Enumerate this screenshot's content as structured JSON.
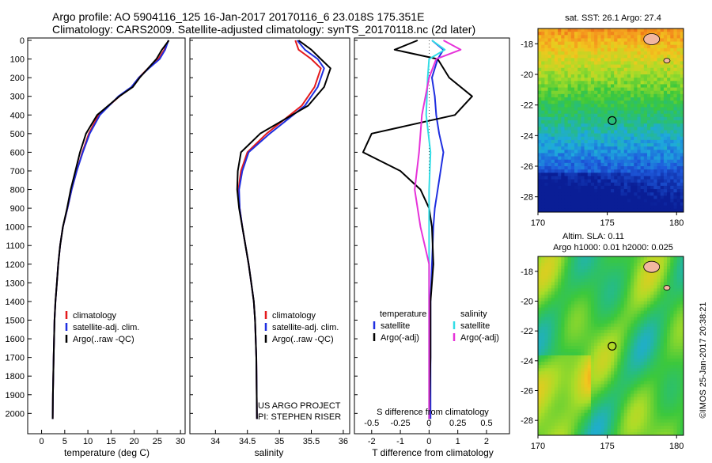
{
  "header": {
    "line1": "Argo profile: AO 5904116_125 16-Jan-2017 20170116_6 23.018S 175.351E",
    "line2": "Climatology: CARS2009. Satellite-adjusted climatology: synTS_20170118.nc (2d later)"
  },
  "credits": {
    "project": "US ARGO PROJECT",
    "pi": "PI: STEPHEN RISER",
    "imos": "©IMOS 25-Jan-2017 20:38:21"
  },
  "colors": {
    "climatology": "#e41a1c",
    "satellite": "#1f2fe0",
    "argo": "#000000",
    "sal_sat": "#33dde6",
    "sal_argo": "#e633d9"
  },
  "chart_data": [
    {
      "id": "temperature",
      "type": "line",
      "xlabel": "temperature (deg C)",
      "xlim": [
        -3,
        31
      ],
      "xticks": [
        0,
        5,
        10,
        15,
        20,
        25,
        30
      ],
      "ylim": [
        2075,
        0
      ],
      "yticks": [
        0,
        100,
        200,
        300,
        400,
        500,
        600,
        700,
        800,
        900,
        1000,
        1100,
        1200,
        1300,
        1400,
        1500,
        1600,
        1700,
        1800,
        1900,
        2000
      ],
      "legend": [
        "climatology",
        "satellite-adj. clim.",
        "Argo(..raw -QC)"
      ],
      "legend_placement": "lower-right",
      "series": [
        {
          "name": "climatology",
          "color_key": "climatology",
          "x": [
            27.4,
            26.5,
            25.2,
            23.0,
            21.0,
            19.5,
            16.8,
            12.3,
            10.2,
            8.8,
            7.6,
            6.5,
            5.6,
            4.6,
            4.0,
            3.6,
            3.3,
            3.0,
            2.8,
            2.6,
            2.45,
            2.4
          ],
          "y": [
            0,
            50,
            100,
            150,
            200,
            250,
            300,
            400,
            500,
            600,
            700,
            800,
            900,
            1000,
            1100,
            1200,
            1300,
            1400,
            1500,
            1700,
            1900,
            2030
          ]
        },
        {
          "name": "satellite-adj. clim.",
          "color_key": "satellite",
          "x": [
            27.4,
            26.7,
            25.5,
            23.2,
            21.0,
            19.4,
            16.6,
            12.6,
            10.4,
            8.9,
            7.6,
            6.5,
            5.6,
            4.6,
            4.0,
            3.6,
            3.3,
            3.0,
            2.8,
            2.6,
            2.45,
            2.4
          ],
          "y": [
            0,
            50,
            100,
            150,
            200,
            250,
            300,
            400,
            500,
            600,
            700,
            800,
            900,
            1000,
            1100,
            1200,
            1300,
            1400,
            1500,
            1700,
            1900,
            2030
          ]
        },
        {
          "name": "Argo(..raw -QC)",
          "color_key": "argo",
          "x": [
            27.5,
            26.0,
            24.8,
            23.0,
            21.2,
            19.7,
            16.8,
            12.0,
            9.6,
            8.3,
            7.3,
            6.3,
            5.5,
            4.6,
            4.0,
            3.6,
            3.3,
            3.0,
            2.8,
            2.6,
            2.45,
            2.4
          ],
          "y": [
            0,
            50,
            100,
            150,
            200,
            250,
            300,
            400,
            500,
            600,
            700,
            800,
            900,
            1000,
            1100,
            1200,
            1300,
            1400,
            1500,
            1700,
            1900,
            2030
          ]
        }
      ]
    },
    {
      "id": "salinity",
      "type": "line",
      "xlabel": "salinity",
      "xlim": [
        33.6,
        36.1
      ],
      "xticks": [
        34,
        34.5,
        35,
        35.5,
        36
      ],
      "ylim": [
        2075,
        0
      ],
      "legend": [
        "climatology",
        "satellite-adj. clim.",
        "Argo(..raw -QC)"
      ],
      "legend_placement": "lower-right",
      "series": [
        {
          "name": "climatology",
          "color_key": "climatology",
          "x": [
            35.25,
            35.3,
            35.5,
            35.65,
            35.55,
            35.35,
            34.8,
            34.5,
            34.4,
            34.36,
            34.38,
            34.42,
            34.47,
            34.52,
            34.56,
            34.6,
            34.62,
            34.64,
            34.65
          ],
          "y": [
            0,
            50,
            100,
            150,
            250,
            350,
            500,
            600,
            700,
            800,
            900,
            1000,
            1100,
            1200,
            1300,
            1400,
            1500,
            1700,
            2030
          ]
        },
        {
          "name": "satellite-adj. clim.",
          "color_key": "satellite",
          "x": [
            35.28,
            35.4,
            35.6,
            35.7,
            35.6,
            35.4,
            34.85,
            34.52,
            34.42,
            34.37,
            34.38,
            34.42,
            34.47,
            34.52,
            34.56,
            34.6,
            34.62,
            34.64,
            34.65
          ],
          "y": [
            0,
            50,
            100,
            150,
            250,
            350,
            500,
            600,
            700,
            800,
            900,
            1000,
            1100,
            1200,
            1300,
            1400,
            1500,
            1700,
            2030
          ]
        },
        {
          "name": "Argo(..raw -QC)",
          "color_key": "argo",
          "x": [
            35.3,
            35.5,
            35.65,
            35.8,
            35.7,
            35.45,
            34.7,
            34.4,
            34.35,
            34.34,
            34.37,
            34.42,
            34.47,
            34.52,
            34.56,
            34.6,
            34.62,
            34.64,
            34.65
          ],
          "y": [
            0,
            50,
            100,
            150,
            250,
            350,
            500,
            600,
            700,
            800,
            900,
            1000,
            1100,
            1200,
            1300,
            1400,
            1500,
            1700,
            2030
          ]
        }
      ]
    },
    {
      "id": "differences",
      "type": "line",
      "xlabel": "T difference from climatology",
      "xlabel_top": "S difference from climatology",
      "xlim": [
        -2.6,
        2.8
      ],
      "xticks": [
        -2,
        -1,
        0,
        1,
        2
      ],
      "top_ticks": [
        -0.5,
        -0.25,
        0,
        0.25,
        0.5
      ],
      "top_tick_labels": [
        "-0.5",
        "-0.25",
        "0",
        "0.25",
        "0.5"
      ],
      "ylim": [
        2075,
        0
      ],
      "legend_headings": [
        "temperature",
        "salinity"
      ],
      "legend": [
        "satellite",
        "Argo(-adj)",
        "satellite",
        "Argo(-adj)"
      ],
      "series": [
        {
          "name": "satellite",
          "group": "temperature",
          "color_key": "satellite",
          "x": [
            0.1,
            0.5,
            0.3,
            0.1,
            0.2,
            0.25,
            0.35,
            0.5,
            0.4,
            0.3,
            0.2,
            0.15,
            0.1,
            0.05,
            0.05,
            0.05
          ],
          "y": [
            0,
            50,
            100,
            200,
            300,
            400,
            500,
            600,
            700,
            800,
            900,
            1000,
            1200,
            1400,
            1700,
            2030
          ]
        },
        {
          "name": "Argo(-adj)",
          "group": "temperature",
          "color_key": "argo",
          "x": [
            -0.4,
            -1.2,
            0.3,
            0.7,
            1.5,
            0.9,
            -2.0,
            -2.3,
            -1.0,
            -0.3,
            0.0,
            0.1,
            0.15,
            0.05,
            0.05,
            0.0
          ],
          "y": [
            0,
            50,
            100,
            200,
            300,
            400,
            500,
            600,
            700,
            800,
            900,
            1000,
            1200,
            1400,
            1700,
            2030
          ]
        },
        {
          "name": "satellite",
          "group": "salinity",
          "color_key": "sal_sat",
          "x": [
            0.1,
            0.55,
            0.0,
            -0.05,
            -0.1,
            0.05,
            0.0,
            0.0,
            0.0,
            0.0,
            0.0
          ],
          "y": [
            0,
            50,
            100,
            200,
            400,
            600,
            800,
            1000,
            1200,
            1600,
            2030
          ]
        },
        {
          "name": "Argo(-adj)",
          "group": "salinity",
          "color_key": "sal_argo",
          "x": [
            0.5,
            1.1,
            0.25,
            0.0,
            -0.25,
            -0.35,
            -0.5,
            -0.3,
            0.0,
            0.0
          ],
          "y": [
            0,
            50,
            100,
            200,
            400,
            600,
            800,
            1000,
            1200,
            2030
          ]
        }
      ]
    },
    {
      "id": "sst-map",
      "type": "heatmap",
      "title": "sat. SST: 26.1  Argo: 27.4",
      "xlim": [
        170,
        180.5
      ],
      "xticks": [
        170,
        175,
        180
      ],
      "ylim": [
        -29,
        -17
      ],
      "yticks": [
        -18,
        -20,
        -22,
        -24,
        -26,
        -28
      ],
      "marker": {
        "lon": 175.351,
        "lat": -23.018
      }
    },
    {
      "id": "sla-map",
      "type": "heatmap",
      "title_line1": "Altim. SLA: 0.11",
      "title_line2": "Argo h1000: 0.01 h2000: 0.025",
      "xlim": [
        170,
        180.5
      ],
      "xticks": [
        170,
        175,
        180
      ],
      "ylim": [
        -29,
        -17
      ],
      "yticks": [
        -18,
        -20,
        -22,
        -24,
        -26,
        -28
      ],
      "marker": {
        "lon": 175.351,
        "lat": -23.018
      }
    }
  ]
}
